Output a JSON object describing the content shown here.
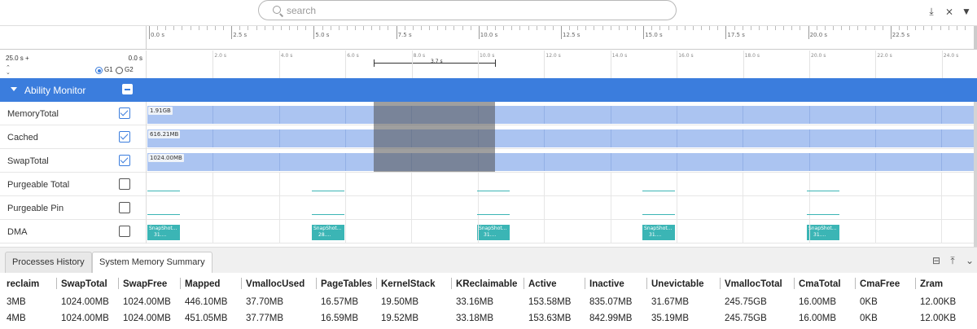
{
  "search": {
    "placeholder": "search"
  },
  "toolbar": {
    "icons": [
      "download-icon",
      "pin-cross-icon",
      "filter-icon"
    ]
  },
  "ruler": {
    "labels": [
      "0.0 s",
      "2.5 s",
      "5.0 s",
      "7.5 s",
      "10.0 s",
      "12.5 s",
      "15.0 s",
      "17.5 s",
      "20.0 s",
      "22.5 s"
    ]
  },
  "range_row": {
    "total": "25.0 s +",
    "offset": "0.0 s",
    "radio_g1": "G1",
    "radio_g2": "G2",
    "selected_group": "G1",
    "labels": [
      "2.0 s",
      "4.0 s",
      "6.0 s",
      "8.0 s",
      "10.0 s",
      "12.0 s",
      "14.0 s",
      "16.0 s",
      "18.0 s",
      "20.0 s",
      "22.0 s",
      "24.0 s"
    ],
    "selection_label": "3.7 s"
  },
  "group": {
    "title": "Ability Monitor"
  },
  "tracks": [
    {
      "name": "MemoryTotal",
      "checked": true,
      "value": "1.91GB"
    },
    {
      "name": "Cached",
      "checked": true,
      "value": "616.21MB"
    },
    {
      "name": "SwapTotal",
      "checked": true,
      "value": "1024.00MB"
    },
    {
      "name": "Purgeable Total",
      "checked": false
    },
    {
      "name": "Purgeable Pin",
      "checked": false
    },
    {
      "name": "DMA",
      "checked": false
    }
  ],
  "snapshots": [
    {
      "title": "SnapShot...",
      "value": "31...."
    },
    {
      "title": "SnapShot...",
      "value": "28...."
    },
    {
      "title": "SnapShot...",
      "value": "31...."
    },
    {
      "title": "SnapShot...",
      "value": "31...."
    },
    {
      "title": "SnapShot...",
      "value": "31...."
    }
  ],
  "tabs": [
    {
      "label": "Processes History",
      "active": false
    },
    {
      "label": "System Memory Summary",
      "active": true
    }
  ],
  "table": {
    "columns": [
      "reclaim",
      "SwapTotal",
      "SwapFree",
      "Mapped",
      "VmallocUsed",
      "PageTables",
      "KernelStack",
      "KReclaimable",
      "Active",
      "Inactive",
      "Unevictable",
      "VmallocTotal",
      "CmaTotal",
      "CmaFree",
      "Zram"
    ],
    "rows": [
      [
        "3MB",
        "1024.00MB",
        "1024.00MB",
        "446.10MB",
        "37.70MB",
        "16.57MB",
        "19.50MB",
        "33.16MB",
        "153.58MB",
        "835.07MB",
        "31.67MB",
        "245.75GB",
        "16.00MB",
        "0KB",
        "12.00KB"
      ],
      [
        "4MB",
        "1024.00MB",
        "1024.00MB",
        "451.05MB",
        "37.77MB",
        "16.59MB",
        "19.52MB",
        "33.18MB",
        "153.63MB",
        "842.99MB",
        "35.19MB",
        "245.75GB",
        "16.00MB",
        "0KB",
        "12.00KB"
      ]
    ]
  }
}
